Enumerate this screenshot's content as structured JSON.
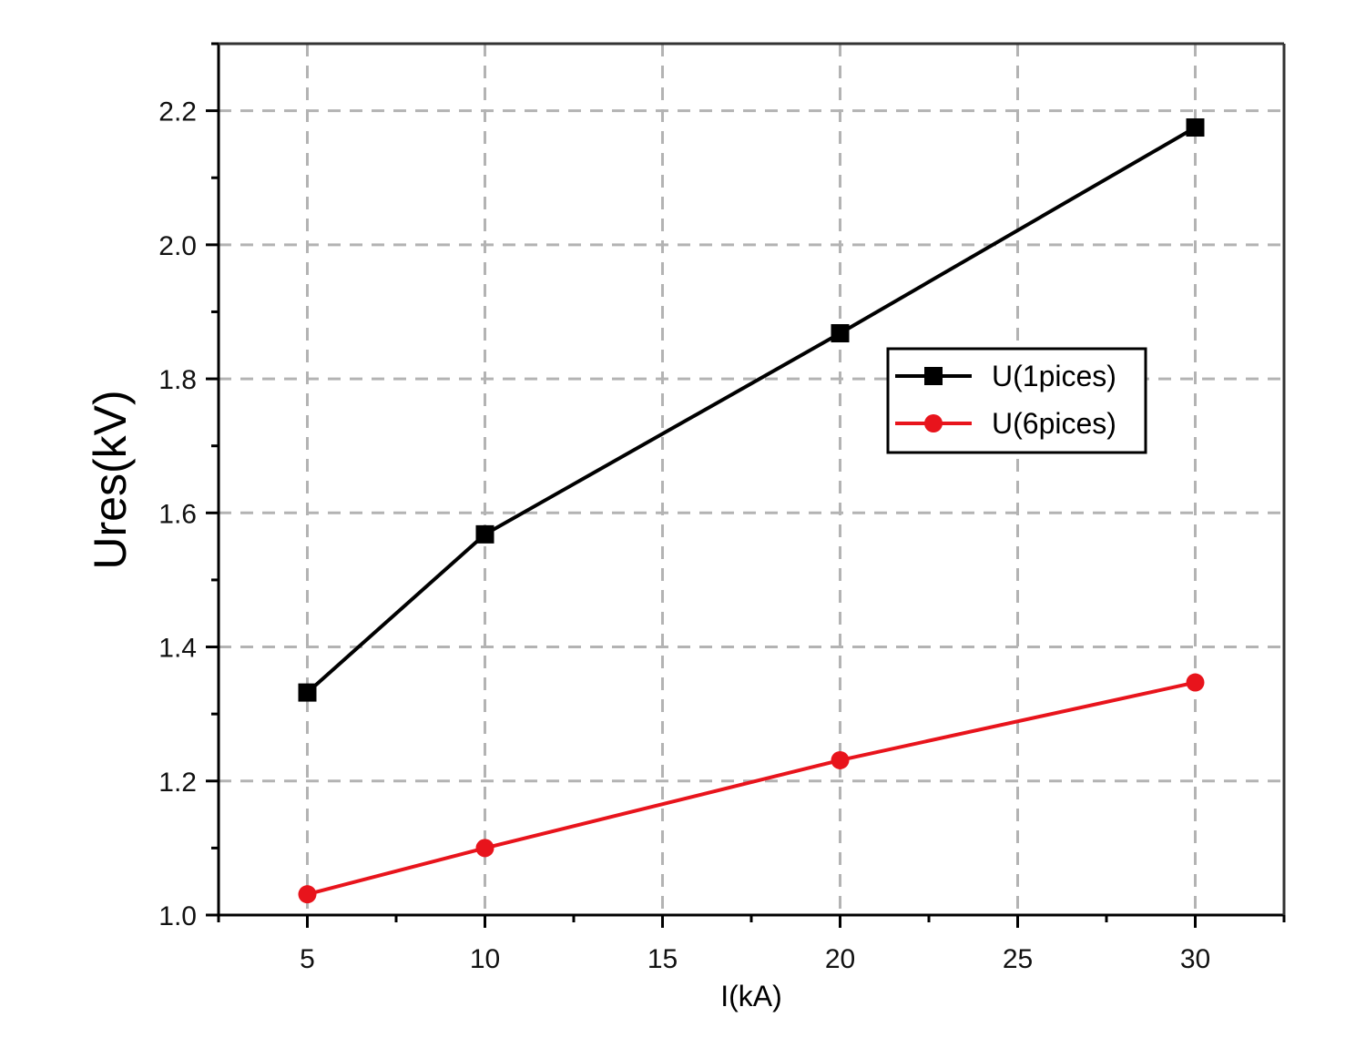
{
  "chart_data": {
    "type": "line",
    "title": "",
    "xlabel": "I(kA)",
    "ylabel": "Ures(kV)",
    "x": [
      5,
      10,
      20,
      30
    ],
    "xlim": [
      2.5,
      32.5
    ],
    "ylim": [
      1.0,
      2.3
    ],
    "xticks": [
      5,
      10,
      15,
      20,
      25,
      30
    ],
    "xtick_labels": [
      "5",
      "10",
      "15",
      "20",
      "25",
      "30"
    ],
    "yticks": [
      1.0,
      1.2,
      1.4,
      1.6,
      1.8,
      2.0,
      2.2
    ],
    "ytick_labels": [
      "1.0",
      "1.2",
      "1.4",
      "1.6",
      "1.8",
      "2.0",
      "2.2"
    ],
    "grid": true,
    "legend_position": "center-right",
    "series": [
      {
        "name": "U(1pices)",
        "color": "#000000",
        "marker": "square",
        "values": [
          1.332,
          1.568,
          1.868,
          2.175
        ]
      },
      {
        "name": "U(6pices)",
        "color": "#e8141c",
        "marker": "circle",
        "values": [
          1.031,
          1.1,
          1.231,
          1.347
        ]
      }
    ]
  }
}
